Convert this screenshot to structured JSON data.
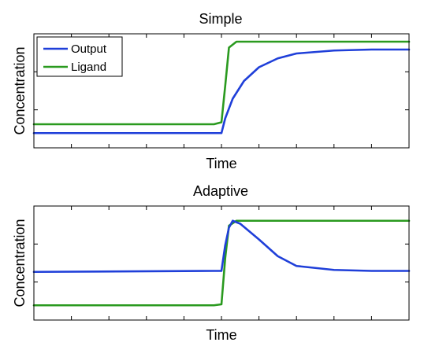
{
  "chart_data": [
    {
      "type": "line",
      "title": "Simple",
      "xlabel": "Time",
      "ylabel": "Concentration",
      "xlim": [
        0,
        1
      ],
      "ylim": [
        0,
        1
      ],
      "x_ticks": 10,
      "y_ticks": 3,
      "grid": false,
      "legend_position": "top-left",
      "series": [
        {
          "name": "Output",
          "color": "#1f3fd9",
          "values": [
            [
              0.0,
              0.07
            ],
            [
              0.48,
              0.07
            ],
            [
              0.5,
              0.07
            ],
            [
              0.51,
              0.22
            ],
            [
              0.53,
              0.42
            ],
            [
              0.56,
              0.6
            ],
            [
              0.6,
              0.74
            ],
            [
              0.65,
              0.83
            ],
            [
              0.7,
              0.88
            ],
            [
              0.8,
              0.91
            ],
            [
              0.9,
              0.92
            ],
            [
              1.0,
              0.92
            ]
          ]
        },
        {
          "name": "Ligand",
          "color": "#2a9a1f",
          "values": [
            [
              0.0,
              0.16
            ],
            [
              0.48,
              0.16
            ],
            [
              0.5,
              0.18
            ],
            [
              0.51,
              0.55
            ],
            [
              0.52,
              0.94
            ],
            [
              0.54,
              1.0
            ],
            [
              0.6,
              1.0
            ],
            [
              1.0,
              1.0
            ]
          ]
        }
      ]
    },
    {
      "type": "line",
      "title": "Adaptive",
      "xlabel": "Time",
      "ylabel": "Concentration",
      "xlim": [
        0,
        1
      ],
      "ylim": [
        0,
        1
      ],
      "x_ticks": 10,
      "y_ticks": 3,
      "grid": false,
      "legend_position": "none",
      "series": [
        {
          "name": "Output",
          "color": "#1f3fd9",
          "values": [
            [
              0.0,
              0.41
            ],
            [
              0.48,
              0.42
            ],
            [
              0.5,
              0.42
            ],
            [
              0.51,
              0.68
            ],
            [
              0.52,
              0.86
            ],
            [
              0.53,
              0.93
            ],
            [
              0.55,
              0.9
            ],
            [
              0.6,
              0.74
            ],
            [
              0.65,
              0.57
            ],
            [
              0.7,
              0.47
            ],
            [
              0.8,
              0.43
            ],
            [
              0.9,
              0.42
            ],
            [
              1.0,
              0.42
            ]
          ]
        },
        {
          "name": "Ligand",
          "color": "#2a9a1f",
          "values": [
            [
              0.0,
              0.07
            ],
            [
              0.48,
              0.07
            ],
            [
              0.5,
              0.08
            ],
            [
              0.51,
              0.55
            ],
            [
              0.52,
              0.88
            ],
            [
              0.54,
              0.93
            ],
            [
              0.6,
              0.93
            ],
            [
              1.0,
              0.93
            ]
          ]
        }
      ]
    }
  ]
}
